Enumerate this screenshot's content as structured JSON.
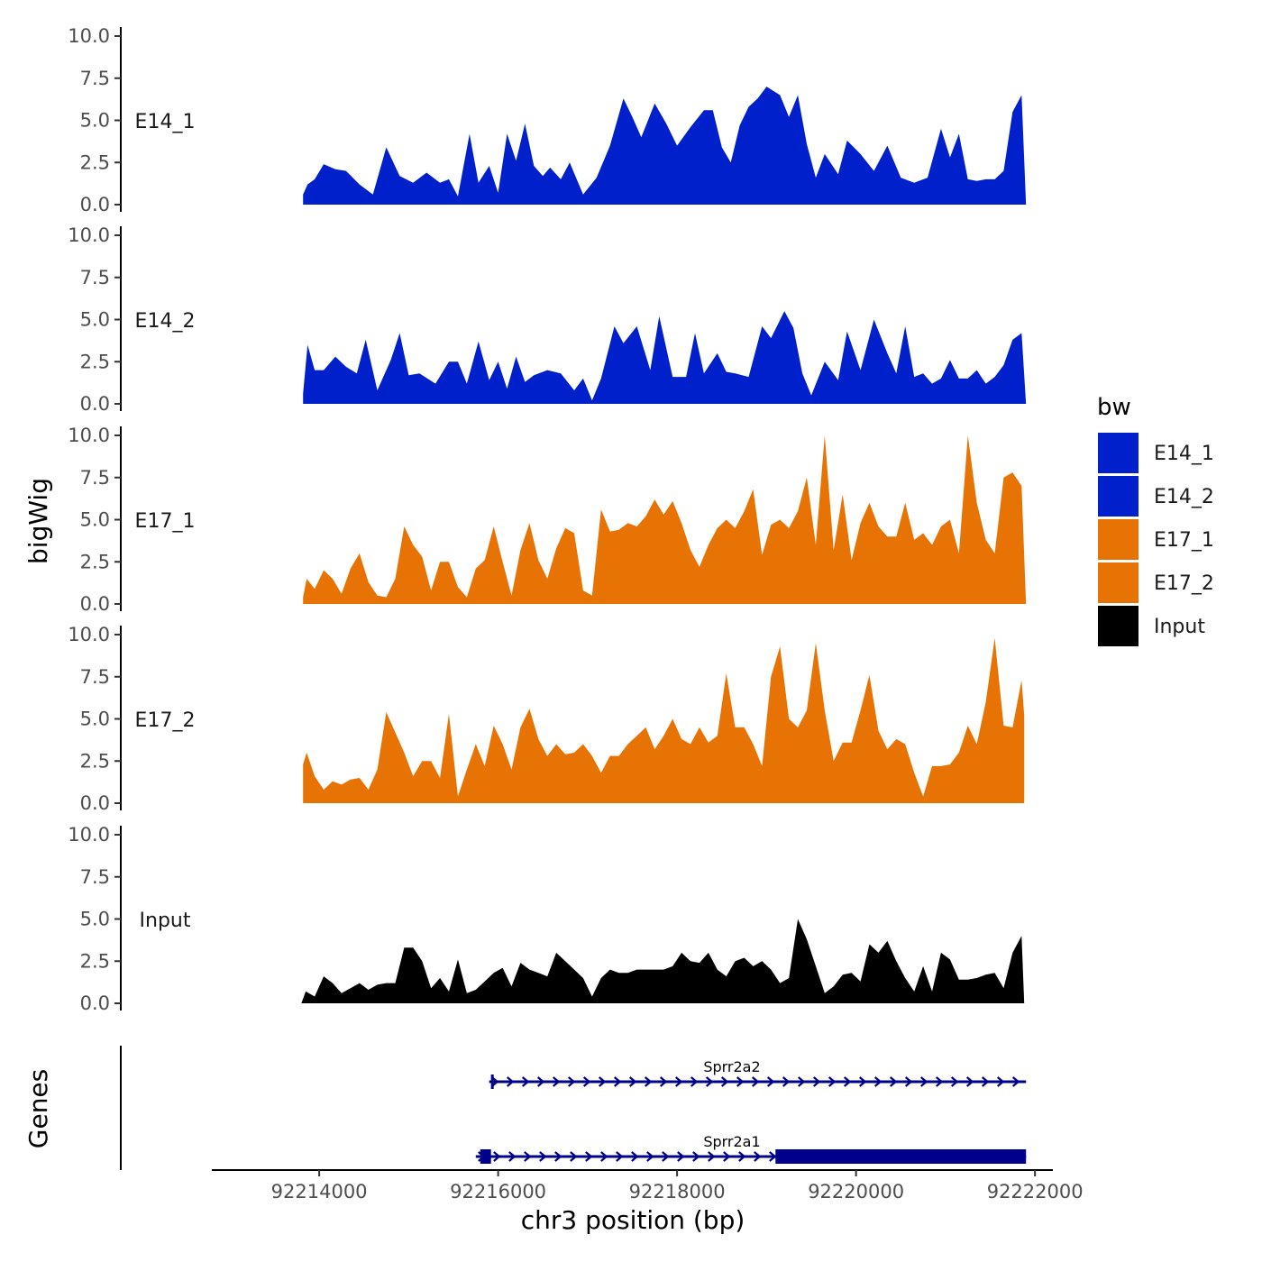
{
  "chart_data": {
    "type": "area",
    "title": "",
    "xlabel": "chr3 position (bp)",
    "ylabel": "bigWig",
    "genes_label": "Genes",
    "xlim": [
      92212800,
      92222200
    ],
    "ylim": [
      0,
      10
    ],
    "xticks": [
      92214000,
      92216000,
      92218000,
      92220000,
      92222000
    ],
    "xtick_labels": [
      "92214000",
      "92216000",
      "92218000",
      "92220000",
      "92222000"
    ],
    "yticks": [
      0,
      2.5,
      5,
      7.5,
      10
    ],
    "ytick_labels": [
      "0.0",
      "2.5",
      "5.0",
      "7.5",
      "10.0"
    ],
    "legend": {
      "title": "bw",
      "position": "right",
      "entries": [
        {
          "label": "E14_1",
          "color": "#0020CC"
        },
        {
          "label": "E14_2",
          "color": "#0020CC"
        },
        {
          "label": "E17_1",
          "color": "#E87305"
        },
        {
          "label": "E17_2",
          "color": "#E87305"
        },
        {
          "label": "Input",
          "color": "#000000"
        }
      ]
    },
    "series": [
      {
        "name": "E14_1",
        "color": "#0020CC",
        "x": [
          92213820,
          92213870,
          92213950,
          92214050,
          92214180,
          92214300,
          92214450,
          92214600,
          92214750,
          92214900,
          92215050,
          92215200,
          92215350,
          92215450,
          92215550,
          92215680,
          92215780,
          92215900,
          92216000,
          92216100,
          92216200,
          92216300,
          92216400,
          92216500,
          92216580,
          92216700,
          92216800,
          92216950,
          92217100,
          92217250,
          92217400,
          92217500,
          92217600,
          92217750,
          92217880,
          92218000,
          92218150,
          92218300,
          92218400,
          92218500,
          92218600,
          92218700,
          92218800,
          92218900,
          92219000,
          92219150,
          92219250,
          92219350,
          92219450,
          92219550,
          92219650,
          92219800,
          92219900,
          92220050,
          92220200,
          92220350,
          92220500,
          92220650,
          92220800,
          92220950,
          92221050,
          92221150,
          92221250,
          92221350,
          92221450,
          92221550,
          92221650,
          92221750,
          92221850,
          92221900
        ],
        "y": [
          0.6,
          1.2,
          1.5,
          2.4,
          2.1,
          2.0,
          1.2,
          0.6,
          3.4,
          1.7,
          1.3,
          1.9,
          1.3,
          1.5,
          0.5,
          4.2,
          1.3,
          2.3,
          0.7,
          4.2,
          2.6,
          4.8,
          2.3,
          1.7,
          2.2,
          1.5,
          2.5,
          0.6,
          1.6,
          3.5,
          6.3,
          5.2,
          4.0,
          6.0,
          4.8,
          3.5,
          4.6,
          5.6,
          5.6,
          3.4,
          2.5,
          4.7,
          5.8,
          6.3,
          7.0,
          6.5,
          5.2,
          6.5,
          3.6,
          1.6,
          3.0,
          1.8,
          3.8,
          3.0,
          2.0,
          3.5,
          1.6,
          1.3,
          1.6,
          4.5,
          2.8,
          4.2,
          1.5,
          1.4,
          1.5,
          1.5,
          2.0,
          5.5,
          6.5,
          0.0
        ]
      },
      {
        "name": "E14_2",
        "color": "#0020CC",
        "x": [
          92213820,
          92213870,
          92213950,
          92214050,
          92214180,
          92214300,
          92214420,
          92214520,
          92214650,
          92214800,
          92214900,
          92215000,
          92215120,
          92215300,
          92215450,
          92215550,
          92215650,
          92215780,
          92215900,
          92216000,
          92216100,
          92216200,
          92216300,
          92216400,
          92216550,
          92216700,
          92216850,
          92216950,
          92217050,
          92217150,
          92217300,
          92217400,
          92217550,
          92217700,
          92217800,
          92217950,
          92218100,
          92218200,
          92218300,
          92218450,
          92218550,
          92218650,
          92218800,
          92218950,
          92219050,
          92219200,
          92219300,
          92219400,
          92219500,
          92219650,
          92219800,
          92219900,
          92220050,
          92220200,
          92220350,
          92220450,
          92220550,
          92220650,
          92220750,
          92220850,
          92220950,
          92221050,
          92221150,
          92221250,
          92221350,
          92221450,
          92221550,
          92221650,
          92221750,
          92221850,
          92221900
        ],
        "y": [
          0.6,
          3.5,
          2.0,
          2.0,
          2.8,
          2.2,
          1.8,
          3.8,
          0.8,
          2.6,
          4.2,
          1.7,
          1.8,
          1.2,
          2.5,
          2.5,
          1.2,
          3.7,
          1.4,
          2.5,
          0.9,
          2.8,
          1.3,
          1.7,
          2.0,
          1.8,
          0.8,
          1.5,
          0.2,
          1.5,
          4.6,
          3.6,
          4.6,
          2.0,
          5.2,
          1.6,
          1.6,
          4.2,
          1.8,
          3.0,
          1.9,
          1.8,
          1.6,
          4.6,
          3.9,
          5.5,
          4.5,
          1.8,
          0.5,
          2.5,
          1.4,
          4.3,
          2.0,
          5.0,
          3.0,
          1.8,
          4.6,
          1.6,
          1.8,
          1.2,
          1.5,
          2.6,
          1.5,
          1.5,
          2.0,
          1.2,
          1.6,
          2.3,
          3.8,
          4.2,
          0.0
        ]
      },
      {
        "name": "E17_1",
        "color": "#E87305",
        "x": [
          92213820,
          92213860,
          92213950,
          92214050,
          92214150,
          92214250,
          92214350,
          92214450,
          92214550,
          92214650,
          92214750,
          92214850,
          92214950,
          92215050,
          92215150,
          92215250,
          92215350,
          92215450,
          92215550,
          92215650,
          92215750,
          92215850,
          92215950,
          92216050,
          92216150,
          92216250,
          92216350,
          92216450,
          92216550,
          92216650,
          92216750,
          92216850,
          92216950,
          92217050,
          92217150,
          92217250,
          92217350,
          92217450,
          92217550,
          92217650,
          92217750,
          92217850,
          92217950,
          92218050,
          92218150,
          92218250,
          92218350,
          92218450,
          92218550,
          92218650,
          92218750,
          92218850,
          92218950,
          92219050,
          92219150,
          92219250,
          92219350,
          92219450,
          92219550,
          92219650,
          92219750,
          92219850,
          92219950,
          92220050,
          92220150,
          92220250,
          92220350,
          92220450,
          92220550,
          92220650,
          92220750,
          92220850,
          92220950,
          92221050,
          92221150,
          92221250,
          92221350,
          92221450,
          92221550,
          92221650,
          92221750,
          92221850,
          92221900
        ],
        "y": [
          0.4,
          1.5,
          0.9,
          2.0,
          1.5,
          0.6,
          2.1,
          3.0,
          1.3,
          0.5,
          0.4,
          1.5,
          4.6,
          3.5,
          2.8,
          0.8,
          2.5,
          2.5,
          1.0,
          0.4,
          2.1,
          2.6,
          4.6,
          2.5,
          0.5,
          3.2,
          4.8,
          2.6,
          1.5,
          3.3,
          4.5,
          4.2,
          0.8,
          0.5,
          5.6,
          4.3,
          4.4,
          4.8,
          4.6,
          5.2,
          6.2,
          5.3,
          6.1,
          4.8,
          3.2,
          2.2,
          3.5,
          4.5,
          5.0,
          4.5,
          5.5,
          6.8,
          2.9,
          4.7,
          5.0,
          4.5,
          5.5,
          7.5,
          3.5,
          10.0,
          3.2,
          6.5,
          2.6,
          4.8,
          6.0,
          4.6,
          4.0,
          4.0,
          6.0,
          3.8,
          4.2,
          3.5,
          4.6,
          5.0,
          3.0,
          10.0,
          6.0,
          3.8,
          3.0,
          7.5,
          7.8,
          7.0,
          0.0
        ]
      },
      {
        "name": "E17_2",
        "color": "#E87305",
        "x": [
          92213820,
          92213860,
          92213950,
          92214050,
          92214150,
          92214250,
          92214350,
          92214450,
          92214550,
          92214650,
          92214750,
          92214850,
          92214950,
          92215050,
          92215150,
          92215250,
          92215350,
          92215450,
          92215550,
          92215650,
          92215750,
          92215850,
          92215950,
          92216050,
          92216150,
          92216250,
          92216350,
          92216450,
          92216550,
          92216650,
          92216750,
          92216850,
          92216950,
          92217050,
          92217150,
          92217250,
          92217350,
          92217450,
          92217550,
          92217650,
          92217750,
          92217850,
          92217950,
          92218050,
          92218150,
          92218250,
          92218350,
          92218450,
          92218550,
          92218650,
          92218750,
          92218850,
          92218950,
          92219050,
          92219150,
          92219250,
          92219350,
          92219450,
          92219550,
          92219650,
          92219750,
          92219850,
          92219950,
          92220050,
          92220150,
          92220250,
          92220350,
          92220450,
          92220550,
          92220650,
          92220750,
          92220850,
          92220950,
          92221050,
          92221150,
          92221250,
          92221350,
          92221450,
          92221550,
          92221650,
          92221750,
          92221850,
          92221880
        ],
        "y": [
          2.3,
          3.0,
          1.6,
          0.8,
          1.3,
          1.1,
          1.4,
          1.5,
          0.8,
          2.0,
          5.4,
          4.2,
          3.0,
          1.6,
          2.5,
          2.5,
          1.5,
          5.3,
          0.4,
          2.0,
          3.5,
          2.2,
          4.6,
          3.5,
          2.0,
          4.5,
          5.6,
          3.8,
          2.8,
          3.5,
          2.9,
          3.0,
          3.5,
          2.8,
          1.8,
          2.8,
          2.8,
          3.5,
          4.0,
          4.5,
          3.2,
          4.0,
          5.0,
          3.8,
          3.5,
          4.5,
          3.6,
          4.0,
          7.7,
          4.5,
          4.5,
          3.5,
          2.2,
          7.5,
          9.3,
          5.0,
          4.5,
          5.5,
          9.5,
          5.5,
          2.5,
          3.6,
          3.6,
          5.5,
          7.6,
          4.3,
          3.2,
          3.8,
          3.5,
          1.8,
          0.4,
          2.2,
          2.2,
          2.3,
          3.0,
          4.6,
          3.5,
          6.0,
          9.8,
          4.6,
          4.5,
          7.3,
          5.2
        ]
      },
      {
        "name": "Input",
        "color": "#000000",
        "x": [
          92213800,
          92213850,
          92213950,
          92214050,
          92214150,
          92214250,
          92214350,
          92214450,
          92214550,
          92214650,
          92214750,
          92214850,
          92214950,
          92215050,
          92215150,
          92215250,
          92215350,
          92215450,
          92215550,
          92215650,
          92215750,
          92215850,
          92215950,
          92216050,
          92216150,
          92216250,
          92216350,
          92216450,
          92216550,
          92216650,
          92216750,
          92216850,
          92216950,
          92217050,
          92217150,
          92217250,
          92217350,
          92217450,
          92217550,
          92217650,
          92217750,
          92217850,
          92217950,
          92218050,
          92218150,
          92218250,
          92218350,
          92218450,
          92218550,
          92218650,
          92218750,
          92218850,
          92218950,
          92219050,
          92219150,
          92219250,
          92219350,
          92219450,
          92219550,
          92219650,
          92219750,
          92219850,
          92219950,
          92220050,
          92220150,
          92220250,
          92220350,
          92220450,
          92220550,
          92220650,
          92220750,
          92220850,
          92220950,
          92221050,
          92221150,
          92221250,
          92221350,
          92221450,
          92221550,
          92221650,
          92221750,
          92221850,
          92221880
        ],
        "y": [
          0.0,
          0.7,
          0.4,
          1.6,
          1.2,
          0.6,
          0.9,
          1.2,
          0.8,
          1.1,
          1.2,
          1.2,
          3.3,
          3.3,
          2.5,
          0.9,
          1.5,
          0.7,
          2.6,
          0.6,
          0.8,
          1.3,
          1.8,
          2.1,
          1.0,
          2.4,
          2.0,
          1.8,
          1.6,
          3.0,
          2.5,
          2.0,
          1.5,
          0.4,
          1.5,
          2.0,
          1.8,
          1.8,
          2.0,
          2.0,
          2.0,
          2.0,
          2.2,
          3.0,
          2.5,
          2.4,
          3.0,
          2.0,
          1.6,
          2.5,
          2.7,
          2.2,
          2.5,
          2.0,
          1.2,
          1.5,
          5.0,
          3.8,
          2.2,
          0.6,
          1.0,
          1.7,
          1.8,
          1.3,
          3.5,
          3.0,
          3.7,
          2.5,
          1.5,
          0.7,
          2.2,
          0.7,
          3.0,
          2.6,
          1.4,
          1.4,
          1.5,
          1.7,
          1.8,
          0.9,
          3.0,
          4.0,
          0.0
        ]
      }
    ],
    "genes": [
      {
        "name": "Sprr2a2",
        "start": 92215900,
        "end": 92221900,
        "strand": "+",
        "color": "#00008B",
        "exons": [
          [
            92215920,
            92215940
          ]
        ]
      },
      {
        "name": "Sprr2a1",
        "start": 92215750,
        "end": 92221900,
        "strand": "+",
        "color": "#00008B",
        "exons": [
          [
            92215800,
            92215920
          ],
          [
            92219100,
            92221900
          ]
        ]
      }
    ]
  }
}
